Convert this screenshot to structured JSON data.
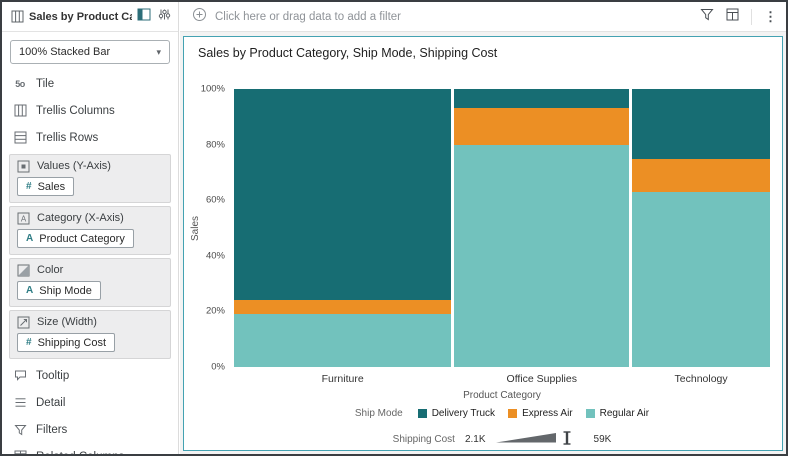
{
  "sidebar": {
    "title": "Sales by Product Ca...",
    "chart_type": "100% Stacked Bar",
    "items": [
      {
        "label": "Tile"
      },
      {
        "label": "Trellis Columns"
      },
      {
        "label": "Trellis Rows"
      }
    ],
    "drop_zones": [
      {
        "label": "Values (Y-Axis)",
        "chips": [
          {
            "icon": "#",
            "label": "Sales"
          }
        ]
      },
      {
        "label": "Category (X-Axis)",
        "chips": [
          {
            "icon": "A",
            "label": "Product Category"
          }
        ]
      },
      {
        "label": "Color",
        "chips": [
          {
            "icon": "A",
            "label": "Ship Mode"
          }
        ]
      },
      {
        "label": "Size (Width)",
        "chips": [
          {
            "icon": "#",
            "label": "Shipping Cost"
          }
        ]
      }
    ],
    "footer_items": [
      {
        "label": "Tooltip"
      },
      {
        "label": "Detail"
      },
      {
        "label": "Filters"
      },
      {
        "label": "Related Columns"
      }
    ]
  },
  "filter_bar": {
    "prompt": "Click here or drag data to add a filter"
  },
  "chart_data": {
    "type": "bar",
    "variant": "100% stacked, bar width encodes Shipping Cost (marimekko)",
    "title": "Sales by Product Category, Ship Mode, Shipping Cost",
    "xlabel": "Product Category",
    "ylabel": "Sales",
    "y_ticks": [
      "0%",
      "20%",
      "40%",
      "60%",
      "80%",
      "100%"
    ],
    "categories": [
      "Furniture",
      "Office Supplies",
      "Technology"
    ],
    "bar_width_pct": [
      41,
      33,
      26
    ],
    "series": [
      {
        "name": "Delivery Truck",
        "color": "#176d73",
        "values": [
          76,
          7,
          25
        ]
      },
      {
        "name": "Express Air",
        "color": "#ec8f24",
        "values": [
          5,
          13,
          12
        ]
      },
      {
        "name": "Regular Air",
        "color": "#72c2bd",
        "values": [
          19,
          80,
          63
        ]
      }
    ],
    "legend": {
      "color_title": "Ship Mode",
      "size_title": "Shipping Cost",
      "size_min": "2.1K",
      "size_max": "59K"
    }
  }
}
